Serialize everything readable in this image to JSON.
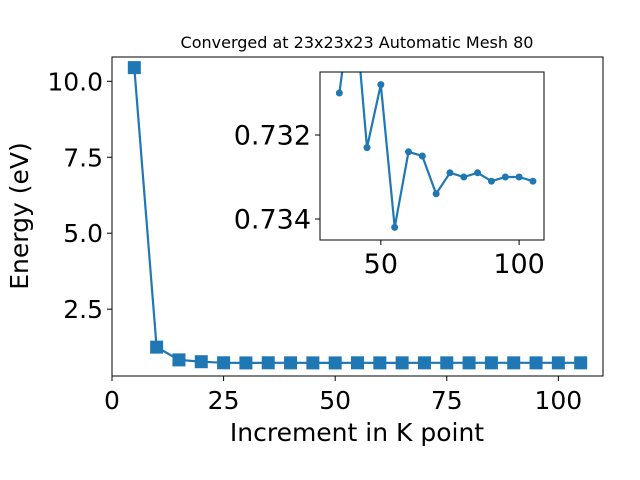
{
  "chart_data": [
    {
      "type": "line",
      "title": "Converged at 23x23x23 Automatic Mesh 80",
      "xlabel": "Increment in K point",
      "ylabel": "Energy (eV)",
      "xlim": [
        0,
        110
      ],
      "ylim": [
        0.3,
        10.8
      ],
      "xticks": [
        0,
        25,
        50,
        75,
        100
      ],
      "xtick_labels": [
        "0",
        "25",
        "50",
        "75",
        "100"
      ],
      "yticks": [
        2.5,
        5.0,
        7.5,
        10.0
      ],
      "ytick_labels": [
        "2.5",
        "5.0",
        "7.5",
        "10.0"
      ],
      "grid": false,
      "marker": "square",
      "color": "#1f77b4",
      "series": [
        {
          "x": [
            5,
            10,
            15,
            20,
            25,
            30,
            35,
            40,
            45,
            50,
            55,
            60,
            65,
            70,
            75,
            80,
            85,
            90,
            95,
            100,
            105
          ],
          "y": [
            10.45,
            1.25,
            0.83,
            0.77,
            0.735,
            0.731,
            0.735,
            0.733,
            0.7318,
            0.7308,
            0.7342,
            0.7326,
            0.7327,
            0.7335,
            0.733,
            0.7331,
            0.733,
            0.7332,
            0.7331,
            0.7331,
            0.7332
          ]
        }
      ]
    },
    {
      "type": "line",
      "title": "",
      "xlabel": "",
      "ylabel": "",
      "inset": true,
      "xlim": [
        28,
        109
      ],
      "ylim": [
        0.7305,
        0.7345
      ],
      "y_inverted": true,
      "xticks": [
        50,
        100
      ],
      "xtick_labels": [
        "50",
        "100"
      ],
      "yticks": [
        0.732,
        0.734
      ],
      "ytick_labels": [
        "0.732",
        "0.734"
      ],
      "grid": false,
      "marker": "circle",
      "color": "#1f77b4",
      "series": [
        {
          "x": [
            35,
            40,
            45,
            50,
            55,
            60,
            65,
            70,
            75,
            80,
            85,
            90,
            95,
            100,
            105
          ],
          "y": [
            0.731,
            0.7285,
            0.7323,
            0.7308,
            0.7342,
            0.7324,
            0.7325,
            0.7334,
            0.7329,
            0.733,
            0.7329,
            0.7331,
            0.733,
            0.733,
            0.7331
          ]
        }
      ]
    }
  ]
}
